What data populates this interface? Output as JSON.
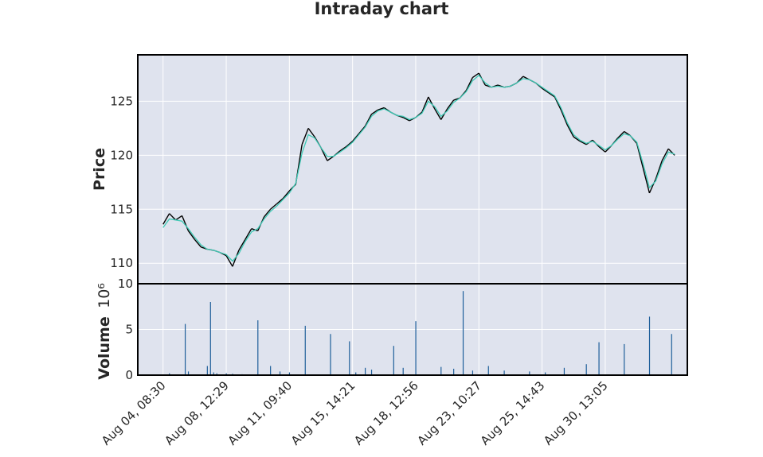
{
  "chart_data": {
    "type": "candlestick",
    "title": "Intraday chart",
    "colors": {
      "panel_bg": "#dfe3ee",
      "grid": "#ffffff",
      "candle": "#000000",
      "moving_average": "#3fc9b5",
      "volume_bar": "#1f5f9a",
      "border": "#000000"
    },
    "price_panel": {
      "ylabel": "Price",
      "ylim": [
        108.1,
        129.3
      ],
      "yticks": [
        110,
        115,
        120,
        125
      ],
      "series": [
        {
          "values": [
            [
              0,
              113.6
            ],
            [
              2,
              114.6
            ],
            [
              4,
              114.0
            ],
            [
              6,
              114.4
            ],
            [
              8,
              113.0
            ],
            [
              10,
              112.2
            ],
            [
              12,
              111.5
            ],
            [
              14,
              111.3
            ],
            [
              16,
              111.2
            ],
            [
              18,
              111.0
            ],
            [
              20,
              110.7
            ],
            [
              22,
              109.7
            ],
            [
              24,
              111.2
            ],
            [
              26,
              112.2
            ],
            [
              28,
              113.2
            ],
            [
              30,
              113.0
            ],
            [
              32,
              114.3
            ],
            [
              34,
              115.0
            ],
            [
              36,
              115.5
            ],
            [
              38,
              116.0
            ],
            [
              40,
              116.7
            ],
            [
              42,
              117.3
            ],
            [
              44,
              121.0
            ],
            [
              46,
              122.5
            ],
            [
              48,
              121.7
            ],
            [
              50,
              120.7
            ],
            [
              52,
              119.5
            ],
            [
              54,
              119.9
            ],
            [
              56,
              120.4
            ],
            [
              58,
              120.8
            ],
            [
              60,
              121.3
            ],
            [
              62,
              122.0
            ],
            [
              64,
              122.7
            ],
            [
              66,
              123.8
            ],
            [
              68,
              124.2
            ],
            [
              70,
              124.4
            ],
            [
              72,
              124.0
            ],
            [
              74,
              123.7
            ],
            [
              76,
              123.5
            ],
            [
              78,
              123.2
            ],
            [
              80,
              123.5
            ],
            [
              82,
              124.0
            ],
            [
              84,
              125.4
            ],
            [
              86,
              124.3
            ],
            [
              88,
              123.3
            ],
            [
              90,
              124.3
            ],
            [
              92,
              125.1
            ],
            [
              94,
              125.3
            ],
            [
              96,
              126.0
            ],
            [
              98,
              127.2
            ],
            [
              100,
              127.6
            ],
            [
              102,
              126.5
            ],
            [
              104,
              126.3
            ],
            [
              106,
              126.5
            ],
            [
              108,
              126.3
            ],
            [
              110,
              126.4
            ],
            [
              112,
              126.7
            ],
            [
              114,
              127.3
            ],
            [
              116,
              127.0
            ],
            [
              118,
              126.7
            ],
            [
              120,
              126.2
            ],
            [
              122,
              125.8
            ],
            [
              124,
              125.4
            ],
            [
              126,
              124.2
            ],
            [
              128,
              122.8
            ],
            [
              130,
              121.7
            ],
            [
              132,
              121.3
            ],
            [
              134,
              121.0
            ],
            [
              136,
              121.4
            ],
            [
              138,
              120.8
            ],
            [
              140,
              120.3
            ],
            [
              142,
              120.9
            ],
            [
              144,
              121.6
            ],
            [
              146,
              122.2
            ],
            [
              148,
              121.8
            ],
            [
              150,
              121.1
            ],
            [
              152,
              118.8
            ],
            [
              154,
              116.5
            ],
            [
              156,
              117.8
            ],
            [
              158,
              119.5
            ],
            [
              160,
              120.6
            ],
            [
              162,
              120.0
            ]
          ]
        },
        {
          "values": [
            [
              0,
              113.3
            ],
            [
              2,
              114.1
            ],
            [
              4,
              114.0
            ],
            [
              6,
              113.9
            ],
            [
              8,
              113.2
            ],
            [
              10,
              112.4
            ],
            [
              12,
              111.7
            ],
            [
              14,
              111.3
            ],
            [
              16,
              111.2
            ],
            [
              18,
              111.0
            ],
            [
              20,
              110.8
            ],
            [
              22,
              110.2
            ],
            [
              24,
              110.9
            ],
            [
              26,
              112.0
            ],
            [
              28,
              112.9
            ],
            [
              30,
              113.2
            ],
            [
              32,
              114.1
            ],
            [
              34,
              114.8
            ],
            [
              36,
              115.3
            ],
            [
              38,
              115.9
            ],
            [
              40,
              116.5
            ],
            [
              42,
              117.4
            ],
            [
              44,
              120.2
            ],
            [
              46,
              121.9
            ],
            [
              48,
              121.6
            ],
            [
              50,
              120.7
            ],
            [
              52,
              119.9
            ],
            [
              54,
              119.9
            ],
            [
              56,
              120.3
            ],
            [
              58,
              120.7
            ],
            [
              60,
              121.2
            ],
            [
              62,
              121.9
            ],
            [
              64,
              122.6
            ],
            [
              66,
              123.6
            ],
            [
              68,
              124.1
            ],
            [
              70,
              124.3
            ],
            [
              72,
              124.0
            ],
            [
              74,
              123.7
            ],
            [
              76,
              123.6
            ],
            [
              78,
              123.3
            ],
            [
              80,
              123.5
            ],
            [
              82,
              123.9
            ],
            [
              84,
              125.0
            ],
            [
              86,
              124.5
            ],
            [
              88,
              123.6
            ],
            [
              90,
              124.1
            ],
            [
              92,
              124.9
            ],
            [
              94,
              125.3
            ],
            [
              96,
              125.9
            ],
            [
              98,
              126.9
            ],
            [
              100,
              127.4
            ],
            [
              102,
              126.7
            ],
            [
              104,
              126.3
            ],
            [
              106,
              126.4
            ],
            [
              108,
              126.3
            ],
            [
              110,
              126.4
            ],
            [
              112,
              126.7
            ],
            [
              114,
              127.1
            ],
            [
              116,
              127.0
            ],
            [
              118,
              126.7
            ],
            [
              120,
              126.3
            ],
            [
              122,
              125.9
            ],
            [
              124,
              125.5
            ],
            [
              126,
              124.4
            ],
            [
              128,
              123.0
            ],
            [
              130,
              121.9
            ],
            [
              132,
              121.4
            ],
            [
              134,
              121.1
            ],
            [
              136,
              121.3
            ],
            [
              138,
              120.9
            ],
            [
              140,
              120.5
            ],
            [
              142,
              120.9
            ],
            [
              144,
              121.5
            ],
            [
              146,
              122.0
            ],
            [
              148,
              121.8
            ],
            [
              150,
              121.2
            ],
            [
              152,
              119.2
            ],
            [
              154,
              117.0
            ],
            [
              156,
              117.6
            ],
            [
              158,
              119.2
            ],
            [
              160,
              120.3
            ],
            [
              162,
              120.1
            ]
          ]
        }
      ]
    },
    "volume_panel": {
      "ylabel": "Volume",
      "yscale_label": "10⁶",
      "ylim": [
        0,
        10
      ],
      "yticks": [
        0,
        5,
        10
      ],
      "values": [
        [
          2,
          0.2
        ],
        [
          7,
          5.6
        ],
        [
          8,
          0.4
        ],
        [
          14,
          1.0
        ],
        [
          15,
          8.0
        ],
        [
          16,
          0.3
        ],
        [
          17,
          0.2
        ],
        [
          20,
          0.2
        ],
        [
          22,
          0.15
        ],
        [
          25,
          0.1
        ],
        [
          30,
          6.0
        ],
        [
          34,
          1.0
        ],
        [
          37,
          0.4
        ],
        [
          40,
          0.3
        ],
        [
          45,
          5.4
        ],
        [
          53,
          4.5
        ],
        [
          59,
          3.7
        ],
        [
          61,
          0.3
        ],
        [
          64,
          0.8
        ],
        [
          66,
          0.6
        ],
        [
          73,
          3.2
        ],
        [
          76,
          0.8
        ],
        [
          80,
          5.9
        ],
        [
          88,
          0.9
        ],
        [
          92,
          0.7
        ],
        [
          95,
          9.2
        ],
        [
          98,
          0.5
        ],
        [
          103,
          1.0
        ],
        [
          108,
          0.5
        ],
        [
          116,
          0.4
        ],
        [
          121,
          0.3
        ],
        [
          127,
          0.8
        ],
        [
          134,
          1.2
        ],
        [
          138,
          3.6
        ],
        [
          146,
          3.4
        ],
        [
          154,
          6.4
        ],
        [
          161,
          4.5
        ]
      ]
    },
    "x_axis": {
      "tick_labels": [
        "Aug 04, 08:30",
        "Aug 08, 12:29",
        "Aug 11, 09:40",
        "Aug 15, 14:21",
        "Aug 18, 12:56",
        "Aug 23, 10:27",
        "Aug 25, 14:43",
        "Aug 30, 13:05"
      ],
      "tick_positions": [
        0,
        20,
        40,
        60,
        80,
        100,
        120,
        140
      ],
      "xlim": [
        -8,
        166
      ]
    },
    "grid": true
  }
}
